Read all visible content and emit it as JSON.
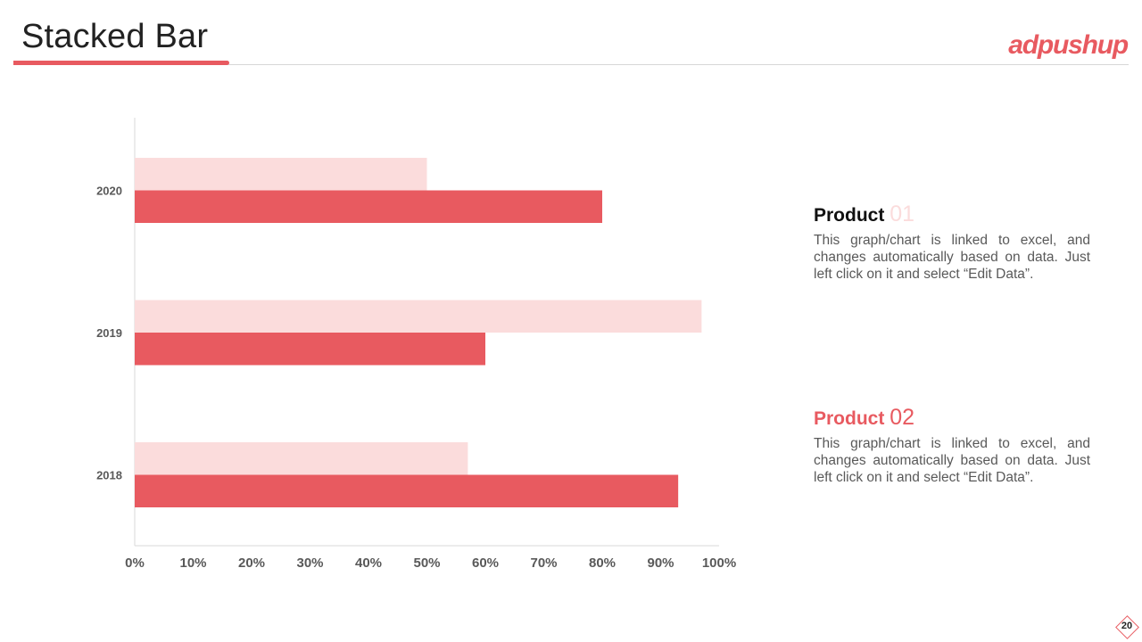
{
  "slide": {
    "title": "Stacked Bar",
    "logo": "adpushup",
    "page_number": "20"
  },
  "products": [
    {
      "label": "Product",
      "number": "01",
      "description": "This graph/chart is linked to excel, and changes automatically based on data. Just left click on it and select “Edit Data”."
    },
    {
      "label": "Product",
      "number": "02",
      "description": "This graph/chart is linked to excel, and changes automatically based on data. Just left click on it and select “Edit Data”."
    }
  ],
  "chart_data": {
    "type": "bar",
    "orientation": "horizontal",
    "categories": [
      "2020",
      "2019",
      "2018"
    ],
    "series": [
      {
        "values": [
          50,
          97,
          57
        ],
        "color": "#fbdcdc"
      },
      {
        "values": [
          80,
          60,
          93
        ],
        "color": "#e85a60"
      }
    ],
    "xlim": [
      0,
      100
    ],
    "x_ticks": [
      "0%",
      "10%",
      "20%",
      "30%",
      "40%",
      "50%",
      "60%",
      "70%",
      "80%",
      "90%",
      "100%"
    ],
    "grid": false,
    "legend": "none"
  }
}
